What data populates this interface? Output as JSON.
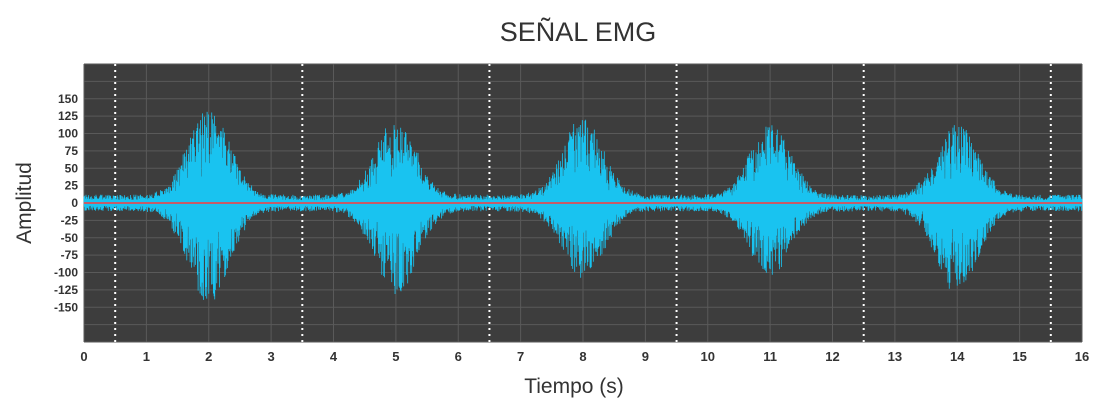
{
  "chart_data": {
    "type": "line",
    "title": "SEÑAL EMG",
    "xlabel": "Tiempo (s)",
    "ylabel": "Amplitud",
    "xlim": [
      0,
      16
    ],
    "ylim": [
      -200,
      200
    ],
    "x_ticks": [
      "0",
      "1",
      "2",
      "3",
      "4",
      "5",
      "6",
      "7",
      "8",
      "9",
      "10",
      "11",
      "12",
      "13",
      "14",
      "15",
      "16"
    ],
    "y_ticks": [
      "150",
      "125",
      "100",
      "75",
      "50",
      "25",
      "0",
      "-25",
      "-50",
      "-75",
      "-100",
      "-125",
      "-150"
    ],
    "grid": true,
    "dotted_markers_x": [
      0.5,
      3.5,
      6.5,
      9.5,
      12.5,
      15.5
    ],
    "baseline_y": 0,
    "series": [
      {
        "color": "#19c3f0",
        "bursts": [
          {
            "center": 2.0,
            "peak_positive": 130,
            "peak_negative": -135
          },
          {
            "center": 5.0,
            "peak_positive": 110,
            "peak_negative": -125
          },
          {
            "center": 8.0,
            "peak_positive": 115,
            "peak_negative": -100
          },
          {
            "center": 11.0,
            "peak_positive": 105,
            "peak_negative": -95
          },
          {
            "center": 14.0,
            "peak_positive": 108,
            "peak_negative": -122
          }
        ],
        "baseline_noise_amplitude": 10
      }
    ],
    "colors": {
      "plot_background": "#3d3d3d",
      "grid": "#5a5a5a",
      "dotted_marker": "#ffffff",
      "baseline": "#ff3b3b",
      "signal": "#19c3f0"
    }
  }
}
